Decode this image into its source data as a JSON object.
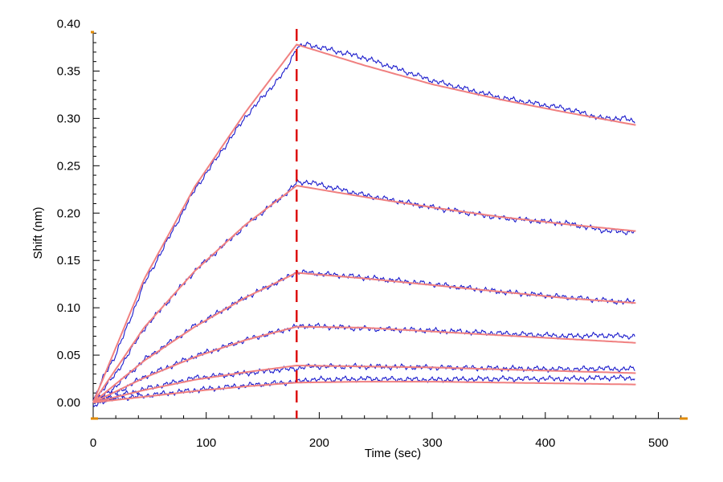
{
  "chart_data": {
    "type": "line",
    "xlabel": "Time (sec)",
    "ylabel": "Shift (nm)",
    "xlim": [
      0,
      525
    ],
    "ylim": [
      -0.01,
      0.42
    ],
    "xticks": [
      0,
      100,
      200,
      300,
      400,
      500
    ],
    "xtick_labels": [
      "0",
      "100",
      "200",
      "300",
      "400",
      "500"
    ],
    "yticks": [
      0.0,
      0.05,
      0.1,
      0.15,
      0.2,
      0.25,
      0.3,
      0.35,
      0.4
    ],
    "ytick_labels": [
      "0.00",
      "0.05",
      "0.10",
      "0.15",
      "0.20",
      "0.25",
      "0.30",
      "0.35",
      "0.40"
    ],
    "grid": false,
    "legend": "none",
    "dissociation_start_x": 180,
    "colors": {
      "raw": "#1a1acc",
      "fit": "#f08080",
      "marker_line": "#dd1111",
      "axis": "#000000",
      "axis_end_marks": "#e08a00"
    },
    "fit_series": [
      {
        "x": [
          0,
          45,
          90,
          135,
          180,
          240,
          300,
          360,
          420,
          480
        ],
        "y": [
          0.0,
          0.13,
          0.228,
          0.307,
          0.378,
          0.356,
          0.336,
          0.32,
          0.306,
          0.293
        ]
      },
      {
        "x": [
          0,
          45,
          90,
          135,
          180,
          240,
          300,
          360,
          420,
          480
        ],
        "y": [
          0.0,
          0.079,
          0.139,
          0.188,
          0.229,
          0.217,
          0.206,
          0.196,
          0.188,
          0.181
        ]
      },
      {
        "x": [
          0,
          45,
          90,
          135,
          180,
          240,
          300,
          360,
          420,
          480
        ],
        "y": [
          0.0,
          0.044,
          0.08,
          0.111,
          0.137,
          0.131,
          0.124,
          0.117,
          0.11,
          0.105
        ]
      },
      {
        "x": [
          0,
          45,
          90,
          135,
          180,
          240,
          300,
          360,
          420,
          480
        ],
        "y": [
          0.0,
          0.026,
          0.048,
          0.066,
          0.08,
          0.079,
          0.075,
          0.071,
          0.067,
          0.063
        ]
      },
      {
        "x": [
          0,
          45,
          90,
          135,
          180,
          240,
          300,
          360,
          420,
          480
        ],
        "y": [
          0.0,
          0.013,
          0.024,
          0.032,
          0.039,
          0.038,
          0.037,
          0.035,
          0.033,
          0.031
        ]
      },
      {
        "x": [
          0,
          45,
          90,
          135,
          180,
          240,
          300,
          360,
          420,
          480
        ],
        "y": [
          0.0,
          0.006,
          0.012,
          0.017,
          0.021,
          0.022,
          0.022,
          0.021,
          0.02,
          0.019
        ]
      }
    ],
    "raw_series": [
      {
        "x": [
          0,
          5,
          10,
          20,
          45,
          90,
          135,
          170,
          180,
          190,
          240,
          300,
          360,
          420,
          450,
          470,
          480
        ],
        "y": [
          0.0,
          0.015,
          0.03,
          0.05,
          0.125,
          0.225,
          0.302,
          0.35,
          0.375,
          0.378,
          0.364,
          0.34,
          0.322,
          0.31,
          0.3,
          0.3,
          0.296
        ]
      },
      {
        "x": [
          0,
          5,
          10,
          20,
          45,
          90,
          135,
          170,
          180,
          190,
          240,
          300,
          360,
          420,
          450,
          470,
          480
        ],
        "y": [
          0.0,
          0.008,
          0.016,
          0.03,
          0.078,
          0.139,
          0.187,
          0.22,
          0.232,
          0.233,
          0.219,
          0.206,
          0.195,
          0.189,
          0.182,
          0.18,
          0.181
        ]
      },
      {
        "x": [
          0,
          5,
          10,
          20,
          45,
          90,
          135,
          170,
          180,
          190,
          240,
          300,
          360,
          420,
          450,
          470,
          480
        ],
        "y": [
          0.0,
          0.004,
          0.008,
          0.017,
          0.045,
          0.081,
          0.111,
          0.131,
          0.138,
          0.137,
          0.132,
          0.125,
          0.117,
          0.111,
          0.108,
          0.106,
          0.107
        ]
      },
      {
        "x": [
          0,
          5,
          10,
          20,
          45,
          90,
          135,
          170,
          180,
          190,
          240,
          300,
          360,
          420,
          450,
          470,
          480
        ],
        "y": [
          0.0,
          0.002,
          0.005,
          0.01,
          0.027,
          0.049,
          0.066,
          0.077,
          0.08,
          0.081,
          0.078,
          0.076,
          0.073,
          0.07,
          0.071,
          0.07,
          0.07
        ]
      },
      {
        "x": [
          0,
          5,
          10,
          20,
          45,
          90,
          135,
          170,
          180,
          190,
          240,
          300,
          360,
          420,
          450,
          470,
          480
        ],
        "y": [
          0.0,
          0.002,
          0.003,
          0.006,
          0.014,
          0.026,
          0.031,
          0.035,
          0.036,
          0.038,
          0.038,
          0.037,
          0.036,
          0.035,
          0.036,
          0.035,
          0.036
        ]
      },
      {
        "x": [
          0,
          5,
          10,
          20,
          45,
          90,
          135,
          170,
          180,
          190,
          240,
          300,
          360,
          420,
          450,
          470,
          480
        ],
        "y": [
          -0.005,
          0.0,
          0.002,
          0.004,
          0.007,
          0.013,
          0.018,
          0.021,
          0.022,
          0.024,
          0.025,
          0.024,
          0.025,
          0.025,
          0.026,
          0.026,
          0.026
        ]
      }
    ]
  }
}
